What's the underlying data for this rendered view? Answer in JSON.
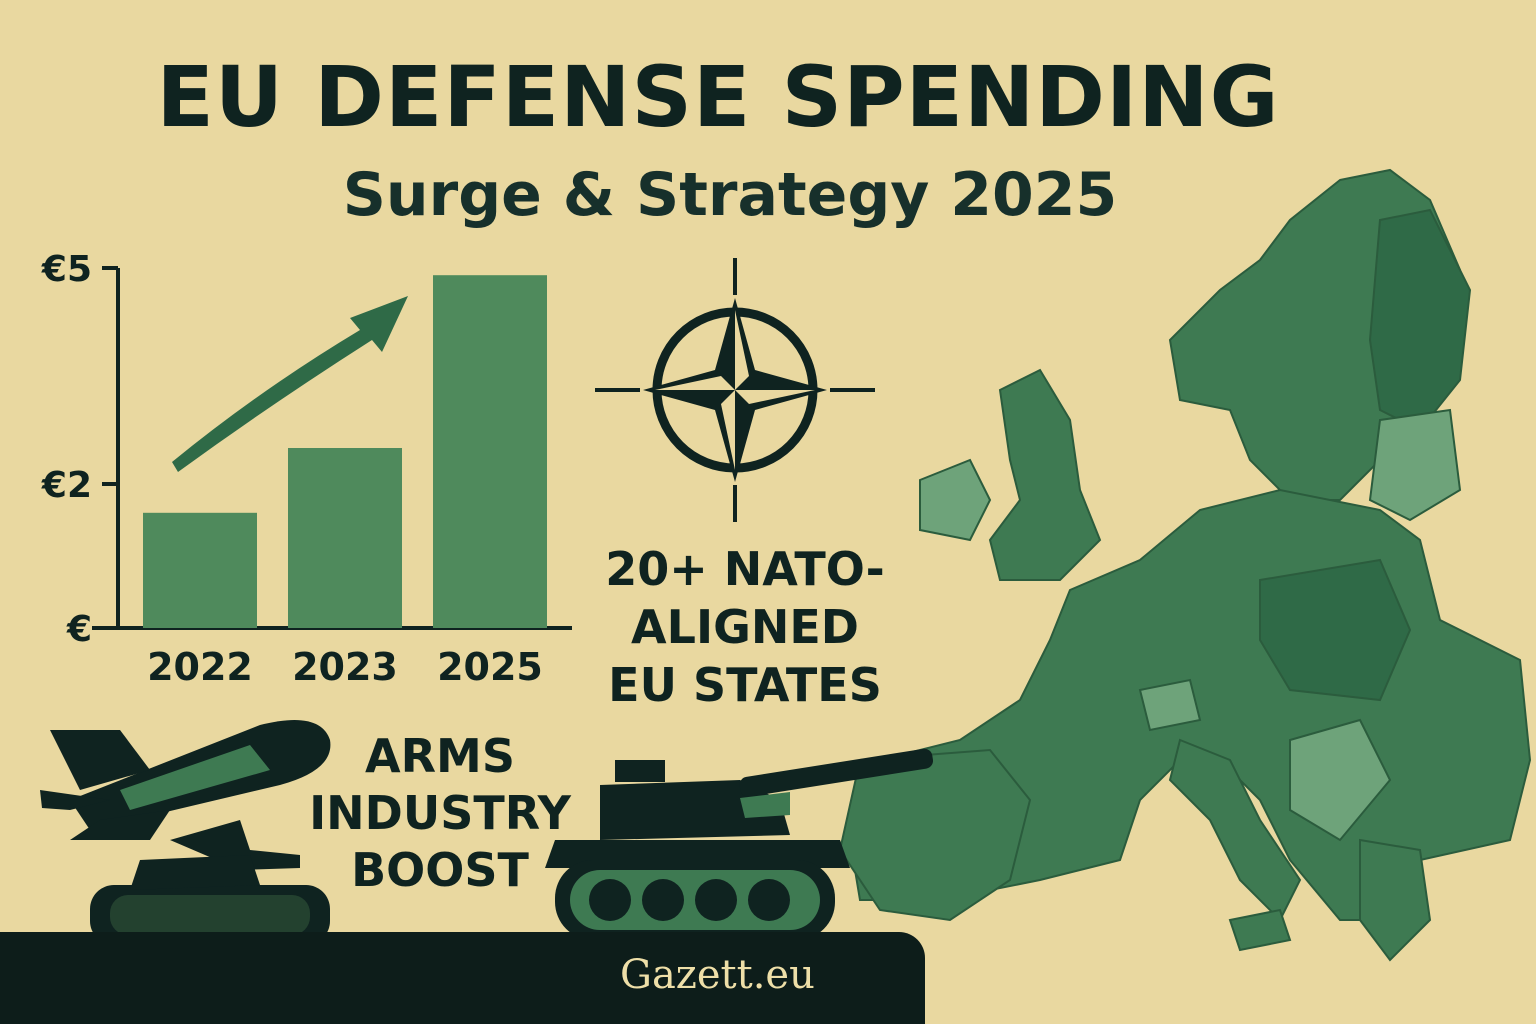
{
  "header": {
    "title": "EU DEFENSE SPENDING",
    "subtitle": "Surge & Strategy 2025"
  },
  "chart_data": {
    "type": "bar",
    "title": "",
    "xlabel": "",
    "ylabel": "",
    "categories": [
      "2022",
      "2023",
      "2025"
    ],
    "values": [
      1.6,
      2.5,
      4.9
    ],
    "ylim": [
      0,
      5
    ],
    "yticks": [
      {
        "value": 0,
        "label": "€"
      },
      {
        "value": 2,
        "label": "€2"
      },
      {
        "value": 5,
        "label": "€5"
      }
    ],
    "grid": false,
    "trend_arrow": true,
    "bar_color": "#4f8a5c"
  },
  "nato_callout": {
    "icon": "compass-star-icon",
    "lines": [
      "20+ NATO-",
      "ALIGNED",
      "EU STATES"
    ]
  },
  "arms_callout": {
    "lines": [
      "ARMS",
      "INDUSTRY",
      "BOOST"
    ]
  },
  "icons": {
    "missile": "missile-icon",
    "tank_small": "tank-icon",
    "tank_large": "tank-icon",
    "map": "europe-map-icon"
  },
  "footer": {
    "source": "Gazett.eu"
  },
  "colors": {
    "background": "#e9d8a0",
    "ink": "#0f2320",
    "green_dark": "#2f6a47",
    "green_mid": "#4f8a5c",
    "green_light": "#6ea37a"
  }
}
